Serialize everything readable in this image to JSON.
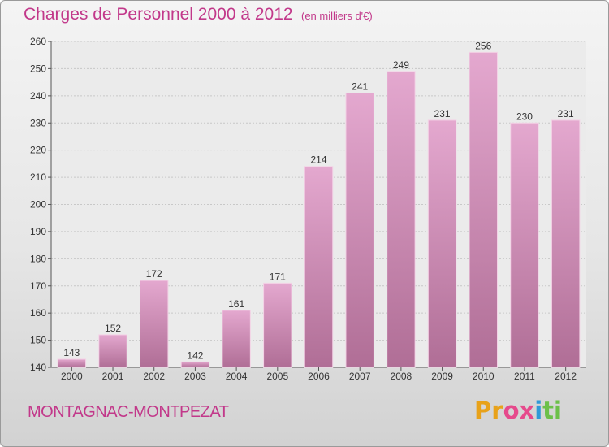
{
  "header": {
    "title": "Charges de Personnel 2000 à 2012",
    "subtitle": "(en milliers d'€)"
  },
  "footer": {
    "town": "MONTAGNAC-MONTPEZAT",
    "logo_text": "Proxiti"
  },
  "colors": {
    "title": "#c2388a",
    "bar_top": "#e4a8cf",
    "bar_bottom": "#b06e96"
  },
  "chart_data": {
    "type": "bar",
    "title": "Charges de Personnel 2000 à 2012",
    "subtitle": "(en milliers d'€)",
    "xlabel": "",
    "ylabel": "",
    "categories": [
      "2000",
      "2001",
      "2002",
      "2003",
      "2004",
      "2005",
      "2006",
      "2007",
      "2008",
      "2009",
      "2010",
      "2011",
      "2012"
    ],
    "values": [
      143,
      152,
      172,
      142,
      161,
      171,
      214,
      241,
      249,
      231,
      256,
      230,
      231
    ],
    "ylim": [
      140,
      260
    ],
    "yticks": [
      140,
      150,
      160,
      170,
      180,
      190,
      200,
      210,
      220,
      230,
      240,
      250,
      260
    ],
    "grid": true,
    "legend": "none"
  }
}
